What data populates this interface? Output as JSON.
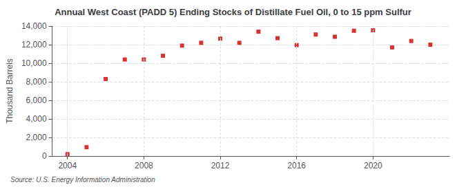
{
  "chart_data": {
    "type": "scatter",
    "title": "Annual West Coast (PADD 5) Ending Stocks of Distillate Fuel Oil, 0 to 15 ppm Sulfur",
    "ylabel": "Thousand Barrels",
    "source": "Source: U.S. Energy Information Administration",
    "x": [
      2004,
      2005,
      2006,
      2007,
      2008,
      2009,
      2010,
      2011,
      2012,
      2013,
      2014,
      2015,
      2016,
      2017,
      2018,
      2019,
      2020,
      2021,
      2022,
      2023
    ],
    "values": [
      200,
      950,
      8300,
      10400,
      10400,
      10800,
      11900,
      12200,
      12650,
      12200,
      13400,
      12700,
      11950,
      13100,
      12850,
      13500,
      13550,
      11700,
      12400,
      12000
    ],
    "color": "#cc0000",
    "marker": "square",
    "xlim": [
      2003.2,
      2024.0
    ],
    "xticks": [
      2004,
      2008,
      2012,
      2016,
      2020
    ],
    "ylim": [
      0,
      14000
    ],
    "yticks": [
      0,
      {
        "value": 2000,
        "label": "2,000"
      },
      {
        "value": 4000,
        "label": "4,000"
      },
      {
        "value": 6000,
        "label": "6,000"
      },
      {
        "value": 8000,
        "label": "8,000"
      },
      {
        "value": 10000,
        "label": "10,000"
      },
      {
        "value": 12000,
        "label": "12,000"
      },
      {
        "value": 14000,
        "label": "14,000"
      }
    ],
    "grid": true
  }
}
